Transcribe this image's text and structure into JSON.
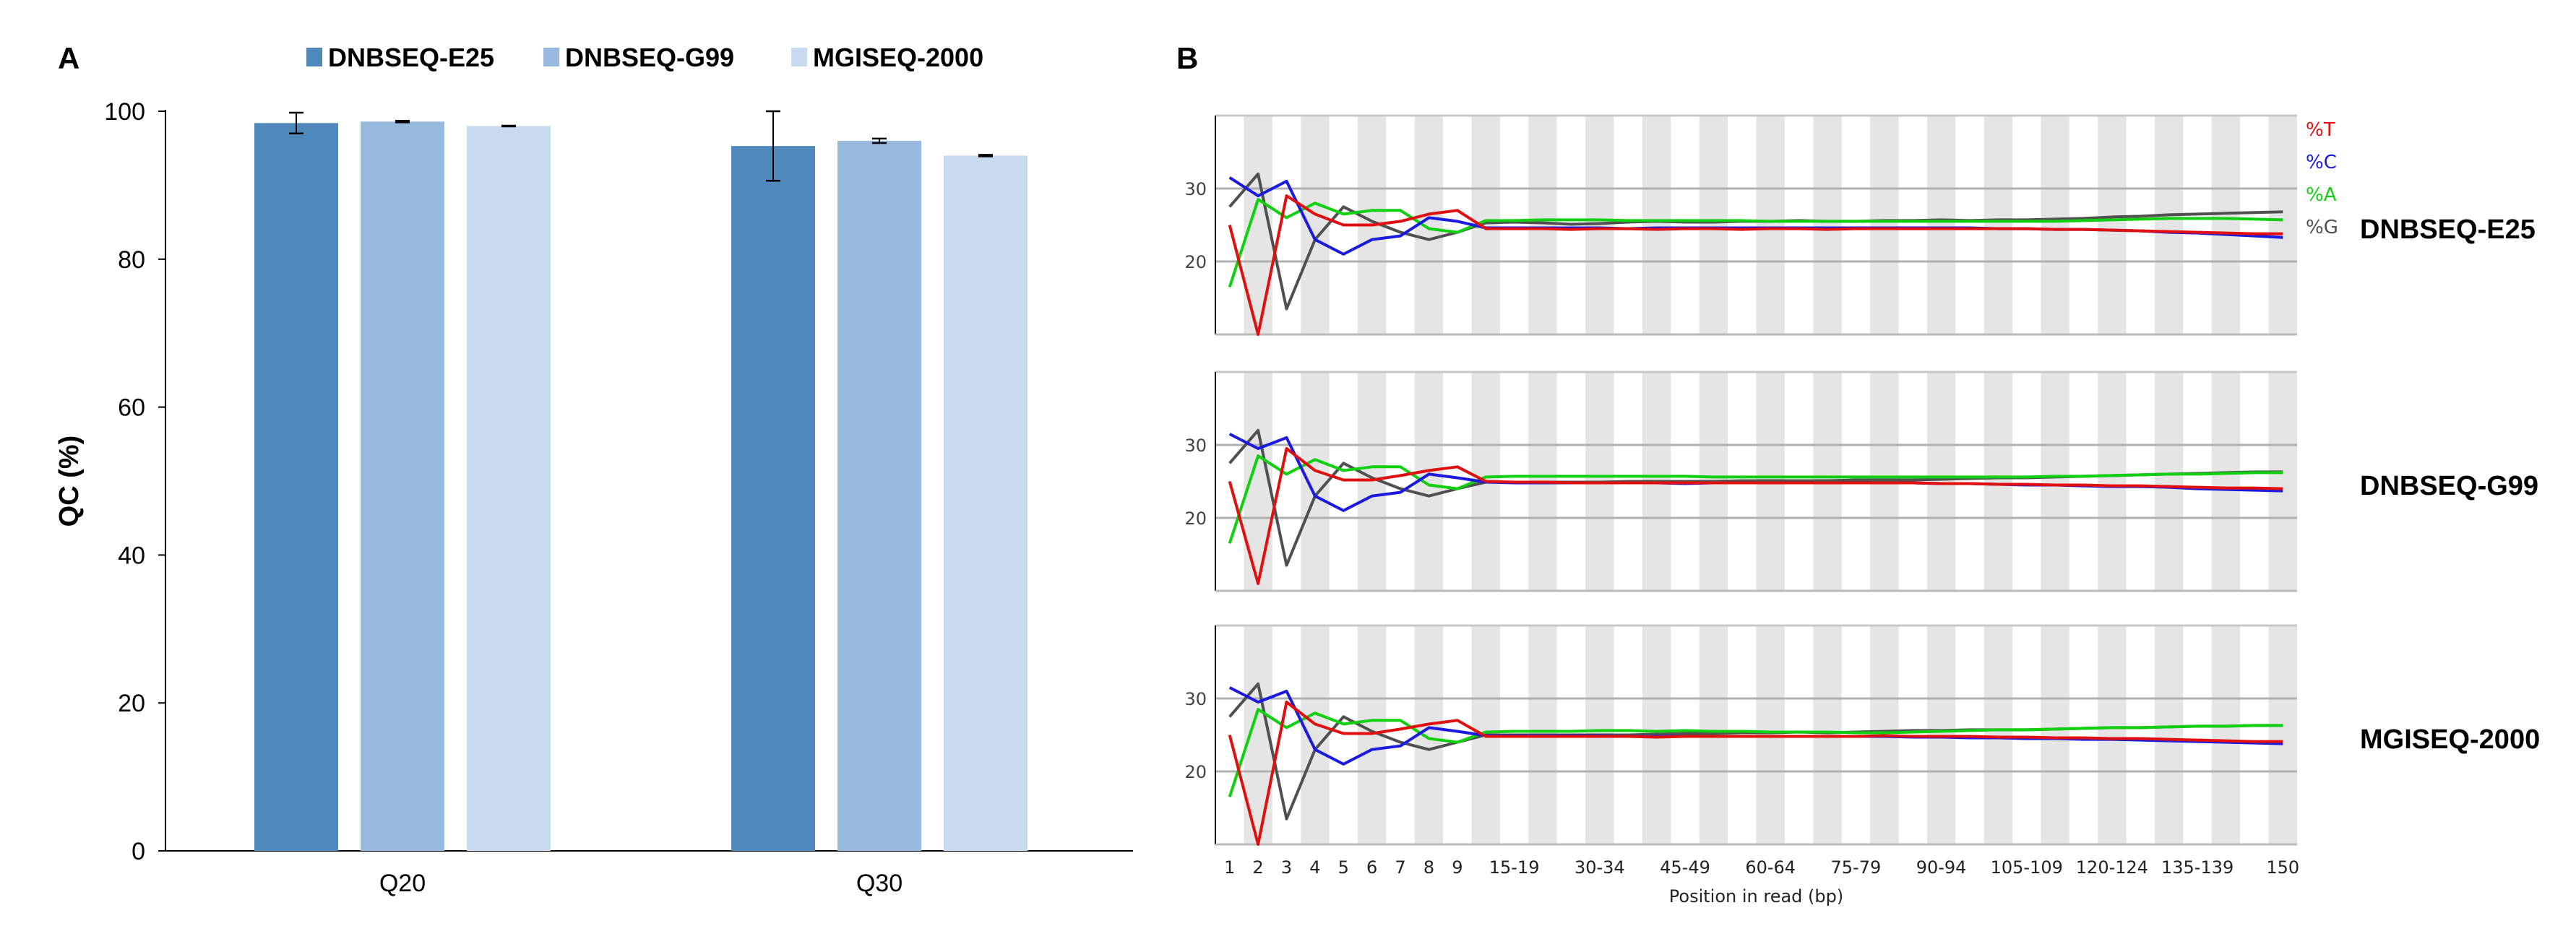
{
  "panel_labels": {
    "a": "A",
    "b": "B"
  },
  "colors": {
    "e25": "#4f89bc",
    "g99": "#98b9de",
    "mgi": "#c8daef",
    "T": "#e01010",
    "C": "#1a1ae0",
    "A": "#10d010",
    "G": "#505050",
    "stripe": "#e5e5e5"
  },
  "chart_data": [
    {
      "type": "bar",
      "title": "",
      "xlabel": "",
      "ylabel": "QC (%)",
      "ylim": [
        0,
        100
      ],
      "yticks": [
        0,
        20,
        40,
        60,
        80,
        100
      ],
      "categories": [
        "Q20",
        "Q30"
      ],
      "legend_placement": "top",
      "grid": false,
      "series": [
        {
          "name": "DNBSEQ-E25",
          "values": [
            98.4,
            95.3
          ],
          "error": [
            1.4,
            4.7
          ]
        },
        {
          "name": "DNBSEQ-G99",
          "values": [
            98.6,
            96.0
          ],
          "error": [
            0.1,
            0.3
          ]
        },
        {
          "name": "MGISEQ-2000",
          "values": [
            98.0,
            94.0
          ],
          "error": [
            0.05,
            0.1
          ]
        }
      ]
    },
    {
      "type": "line",
      "title": "",
      "xlabel": "Position in read (bp)",
      "ylabel": "",
      "ylim": [
        10,
        40
      ],
      "yticks": [
        20,
        30
      ],
      "grid": true,
      "x": [
        "1",
        "2",
        "3",
        "4",
        "5",
        "6",
        "7",
        "8",
        "9",
        "10-14",
        "15-19",
        "20-24",
        "25-29",
        "30-34",
        "35-39",
        "40-44",
        "45-49",
        "50-54",
        "55-59",
        "60-64",
        "65-69",
        "70-74",
        "75-79",
        "80-84",
        "85-89",
        "90-94",
        "95-99",
        "100-104",
        "105-109",
        "110-114",
        "115-119",
        "120-124",
        "125-129",
        "130-134",
        "135-139",
        "140-144",
        "145-149",
        "150"
      ],
      "xtick_labels": [
        "1",
        "2",
        "3",
        "4",
        "5",
        "6",
        "7",
        "8",
        "9",
        "15-19",
        "30-34",
        "45-49",
        "60-64",
        "75-79",
        "90-94",
        "105-109",
        "120-124",
        "135-139",
        "150"
      ],
      "legend": [
        "%T",
        "%C",
        "%A",
        "%G"
      ],
      "legend_placement": "right",
      "panels": [
        {
          "name": "DNBSEQ-E25",
          "series": {
            "T": [
              25,
              10,
              29,
              26.5,
              25,
              25,
              25.5,
              26.5,
              27,
              24.5,
              24.5,
              24.5,
              24.4,
              24.5,
              24.5,
              24.4,
              24.5,
              24.5,
              24.4,
              24.5,
              24.5,
              24.4,
              24.5,
              24.5,
              24.5,
              24.5,
              24.5,
              24.5,
              24.5,
              24.4,
              24.4,
              24.3,
              24.2,
              24.1,
              24.0,
              23.9,
              23.8,
              23.8
            ],
            "C": [
              31.5,
              29,
              31,
              23,
              21,
              23,
              23.5,
              26,
              25.5,
              24.6,
              24.6,
              24.6,
              24.6,
              24.6,
              24.5,
              24.6,
              24.6,
              24.6,
              24.6,
              24.6,
              24.6,
              24.6,
              24.6,
              24.6,
              24.6,
              24.6,
              24.6,
              24.5,
              24.5,
              24.4,
              24.4,
              24.3,
              24.2,
              24.0,
              23.9,
              23.7,
              23.5,
              23.3
            ],
            "A": [
              16.5,
              28.5,
              26,
              28,
              26.5,
              27,
              27,
              24.5,
              24,
              25.6,
              25.6,
              25.7,
              25.7,
              25.7,
              25.6,
              25.6,
              25.6,
              25.6,
              25.6,
              25.5,
              25.5,
              25.5,
              25.5,
              25.5,
              25.5,
              25.5,
              25.5,
              25.5,
              25.5,
              25.5,
              25.6,
              25.7,
              25.8,
              25.9,
              25.9,
              25.9,
              25.8,
              25.7
            ],
            "G": [
              27.5,
              32,
              13.5,
              23,
              27.5,
              25.5,
              24,
              23,
              24,
              25.3,
              25.4,
              25.3,
              25.1,
              25.2,
              25.4,
              25.5,
              25.4,
              25.4,
              25.5,
              25.5,
              25.6,
              25.5,
              25.5,
              25.6,
              25.6,
              25.7,
              25.6,
              25.7,
              25.7,
              25.8,
              25.9,
              26.1,
              26.2,
              26.4,
              26.5,
              26.6,
              26.7,
              26.8
            ]
          }
        },
        {
          "name": "DNBSEQ-G99",
          "series": {
            "T": [
              25,
              11,
              29.5,
              26.5,
              25.2,
              25.2,
              25.8,
              26.5,
              27,
              25,
              24.9,
              24.9,
              24.8,
              24.8,
              24.8,
              24.8,
              24.8,
              24.8,
              24.8,
              24.8,
              24.8,
              24.8,
              24.8,
              24.8,
              24.8,
              24.7,
              24.7,
              24.6,
              24.6,
              24.5,
              24.5,
              24.4,
              24.4,
              24.3,
              24.2,
              24.1,
              24.1,
              24.0
            ],
            "C": [
              31.5,
              29.5,
              31,
              23,
              21,
              23,
              23.5,
              26,
              25.5,
              24.9,
              24.8,
              24.8,
              24.8,
              24.8,
              24.8,
              24.8,
              24.7,
              24.8,
              24.8,
              24.8,
              24.8,
              24.8,
              24.8,
              24.8,
              24.8,
              24.7,
              24.7,
              24.6,
              24.5,
              24.5,
              24.4,
              24.3,
              24.3,
              24.2,
              24.0,
              23.9,
              23.8,
              23.7
            ],
            "A": [
              16.5,
              28.5,
              26,
              28,
              26.5,
              27,
              27,
              24.5,
              24,
              25.6,
              25.7,
              25.7,
              25.7,
              25.7,
              25.7,
              25.7,
              25.7,
              25.6,
              25.6,
              25.6,
              25.6,
              25.6,
              25.6,
              25.6,
              25.6,
              25.6,
              25.6,
              25.6,
              25.6,
              25.7,
              25.7,
              25.8,
              25.9,
              26.0,
              26.0,
              26.1,
              26.2,
              26.2
            ],
            "G": [
              27.5,
              32,
              13.5,
              23,
              27.5,
              25.5,
              24,
              23,
              24,
              24.9,
              24.9,
              24.9,
              24.9,
              24.9,
              25.0,
              25.0,
              25.0,
              25.0,
              25.1,
              25.1,
              25.1,
              25.1,
              25.2,
              25.2,
              25.2,
              25.3,
              25.4,
              25.5,
              25.5,
              25.6,
              25.7,
              25.8,
              25.9,
              26.0,
              26.1,
              26.2,
              26.3,
              26.3
            ]
          }
        },
        {
          "name": "MGISEQ-2000",
          "series": {
            "T": [
              25,
              10,
              29.5,
              26.5,
              25.2,
              25.2,
              25.8,
              26.5,
              27,
              24.8,
              24.8,
              24.8,
              24.8,
              24.8,
              24.8,
              24.7,
              24.8,
              24.8,
              24.8,
              24.8,
              24.8,
              24.8,
              24.8,
              24.9,
              24.8,
              24.8,
              24.8,
              24.7,
              24.7,
              24.6,
              24.6,
              24.5,
              24.5,
              24.4,
              24.3,
              24.2,
              24.1,
              24.1
            ],
            "C": [
              31.5,
              29.5,
              31,
              23,
              21,
              23,
              23.5,
              26,
              25.5,
              24.9,
              24.9,
              24.9,
              24.9,
              24.9,
              24.8,
              24.8,
              24.8,
              24.8,
              24.8,
              24.8,
              24.8,
              24.8,
              24.8,
              24.8,
              24.7,
              24.7,
              24.6,
              24.6,
              24.5,
              24.5,
              24.4,
              24.4,
              24.3,
              24.2,
              24.1,
              24.0,
              23.9,
              23.8
            ],
            "A": [
              16.5,
              28.5,
              26,
              28,
              26.5,
              27,
              27,
              24.5,
              24,
              25.4,
              25.5,
              25.5,
              25.5,
              25.6,
              25.6,
              25.5,
              25.6,
              25.5,
              25.5,
              25.4,
              25.4,
              25.4,
              25.3,
              25.3,
              25.4,
              25.5,
              25.6,
              25.7,
              25.7,
              25.8,
              25.9,
              26.0,
              26.0,
              26.1,
              26.2,
              26.2,
              26.3,
              26.3
            ],
            "G": [
              27.5,
              32,
              13.5,
              23,
              27.5,
              25.5,
              24,
              23,
              24,
              25.0,
              25.0,
              25.0,
              25.0,
              25.0,
              25.0,
              25.1,
              25.2,
              25.2,
              25.3,
              25.3,
              25.4,
              25.3,
              25.4,
              25.5,
              25.6,
              25.6,
              25.7,
              25.7,
              25.7,
              25.8,
              25.9,
              26.0,
              26.0,
              26.1,
              26.2,
              26.2,
              26.3,
              26.3
            ]
          }
        }
      ]
    }
  ]
}
